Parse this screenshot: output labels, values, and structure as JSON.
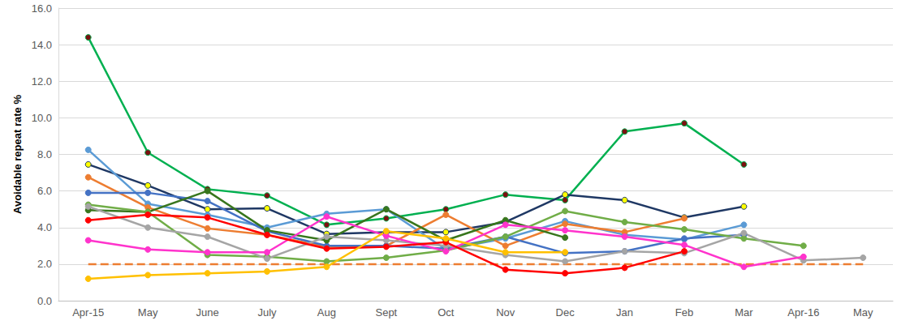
{
  "chart_data": {
    "type": "line",
    "y_label": "Avoidable repeat rate %",
    "categories": [
      "Apr-15",
      "May",
      "June",
      "July",
      "Aug",
      "Sept",
      "Oct",
      "Nov",
      "Dec",
      "Jan",
      "Feb",
      "Mar",
      "Apr-16",
      "May"
    ],
    "ylim": [
      0,
      16
    ],
    "yticks": [
      {
        "value": 0,
        "label": "0.0"
      },
      {
        "value": 2,
        "label": "2.0"
      },
      {
        "value": 4,
        "label": "4.0"
      },
      {
        "value": 6,
        "label": "6.0"
      },
      {
        "value": 8,
        "label": "8.0"
      },
      {
        "value": 10,
        "label": "10.0"
      },
      {
        "value": 12,
        "label": "12.0"
      },
      {
        "value": 14,
        "label": "14.0"
      },
      {
        "value": 16,
        "label": "16.0"
      }
    ],
    "grid": true,
    "series": [
      {
        "color": "#00b050",
        "marker": "circle",
        "line_style": "solid",
        "colors": [
          "#7b1010",
          "#7b1010",
          "#7b1010",
          "#7b1010",
          "#7b1010",
          "#7b1010",
          "#7b1010",
          "#7b1010",
          "#7b1010",
          "#7b1010",
          "#7b1010",
          "#7b1010",
          "#7b1010",
          "#7b1010"
        ],
        "values": [
          14.4,
          8.1,
          6.1,
          5.75,
          4.15,
          4.5,
          5.0,
          5.8,
          5.5,
          9.25,
          9.7,
          7.45,
          null,
          null
        ]
      },
      {
        "color": "#1f3864",
        "marker": "circle",
        "line_style": "solid",
        "colors": [
          "#ffff00",
          "#ffff00",
          "#ffff00",
          "#ffff00",
          "#ffff00",
          "#ffff00",
          "#ffff00",
          "#ffff00",
          "#ffff00",
          "#ffff00",
          "#ffff00",
          "#ffff00",
          "#ffff00",
          "#ffff00"
        ],
        "values": [
          7.45,
          6.3,
          5.0,
          5.05,
          3.65,
          3.75,
          3.75,
          4.3,
          5.8,
          5.5,
          4.55,
          5.15,
          null,
          null
        ]
      },
      {
        "color": "#5b9bd5",
        "marker": "circle",
        "line_style": "solid",
        "values": [
          8.25,
          5.3,
          4.7,
          4.0,
          4.75,
          5.0,
          2.8,
          3.4,
          4.35,
          3.6,
          3.35,
          4.15,
          null,
          null
        ]
      },
      {
        "color": "#ed7d31",
        "marker": "circle",
        "line_style": "solid",
        "values": [
          6.75,
          5.1,
          3.95,
          3.6,
          2.95,
          3.0,
          4.7,
          3.0,
          4.2,
          3.75,
          4.5,
          null,
          null,
          null
        ]
      },
      {
        "color": "#4472c4",
        "marker": "circle",
        "line_style": "solid",
        "values": [
          5.9,
          5.9,
          5.45,
          3.8,
          3.0,
          3.0,
          2.85,
          3.5,
          2.6,
          2.7,
          3.4,
          3.6,
          null,
          null
        ]
      },
      {
        "color": "#38761d",
        "marker": "circle",
        "line_style": "solid",
        "values": [
          4.95,
          4.85,
          6.0,
          3.85,
          3.3,
          5.0,
          3.3,
          4.4,
          3.45,
          null,
          null,
          null,
          null,
          null
        ]
      },
      {
        "color": "#70ad47",
        "marker": "circle",
        "line_style": "solid",
        "values": [
          5.25,
          4.85,
          2.5,
          2.4,
          2.15,
          2.35,
          2.75,
          3.5,
          4.9,
          4.3,
          3.9,
          3.4,
          3.0,
          null
        ]
      },
      {
        "color": "#a5a5a5",
        "marker": "circle",
        "line_style": "solid",
        "values": [
          5.15,
          4.0,
          3.5,
          2.3,
          3.5,
          3.3,
          3.0,
          2.5,
          2.15,
          2.7,
          2.6,
          3.7,
          2.2,
          2.35
        ]
      },
      {
        "color": "#ff33cc",
        "marker": "circle",
        "line_style": "solid",
        "values": [
          3.3,
          2.8,
          2.65,
          2.65,
          4.6,
          3.55,
          2.7,
          4.15,
          3.85,
          3.5,
          3.05,
          1.85,
          2.4,
          null
        ]
      },
      {
        "color": "#ff0000",
        "marker": "circle",
        "line_style": "solid",
        "values": [
          4.4,
          4.7,
          4.55,
          3.6,
          2.85,
          2.95,
          3.2,
          1.7,
          1.5,
          1.8,
          2.7,
          null,
          null,
          null
        ]
      },
      {
        "color": "#ffc000",
        "marker": "circle",
        "line_style": "solid",
        "values": [
          1.2,
          1.4,
          1.5,
          1.6,
          1.85,
          3.8,
          3.4,
          2.65,
          2.65,
          null,
          null,
          null,
          null,
          null
        ]
      },
      {
        "color": "#ed7d31",
        "marker": "none",
        "line_style": "dashed",
        "values": [
          2,
          2,
          2,
          2,
          2,
          2,
          2,
          2,
          2,
          2,
          2,
          2,
          2,
          2
        ]
      }
    ]
  }
}
